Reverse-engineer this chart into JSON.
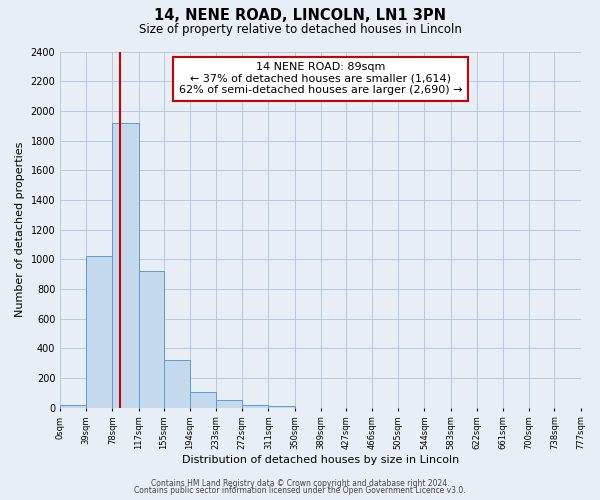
{
  "title": "14, NENE ROAD, LINCOLN, LN1 3PN",
  "subtitle": "Size of property relative to detached houses in Lincoln",
  "xlabel": "Distribution of detached houses by size in Lincoln",
  "ylabel": "Number of detached properties",
  "bin_edges": [
    0,
    39,
    78,
    117,
    155,
    194,
    233,
    272,
    311,
    350,
    389,
    427,
    466,
    505,
    544,
    583,
    622,
    661,
    700,
    738,
    777
  ],
  "bin_labels": [
    "0sqm",
    "39sqm",
    "78sqm",
    "117sqm",
    "155sqm",
    "194sqm",
    "233sqm",
    "272sqm",
    "311sqm",
    "350sqm",
    "389sqm",
    "427sqm",
    "466sqm",
    "505sqm",
    "544sqm",
    "583sqm",
    "622sqm",
    "661sqm",
    "700sqm",
    "738sqm",
    "777sqm"
  ],
  "bar_heights": [
    20,
    1020,
    1920,
    920,
    320,
    105,
    50,
    22,
    10,
    0,
    0,
    0,
    0,
    0,
    0,
    0,
    0,
    0,
    0,
    0
  ],
  "bar_color": "#c5d9ed",
  "bar_edge_color": "#5b9bd5",
  "vline_x": 89,
  "vline_color": "#cc0000",
  "annotation_line1": "14 NENE ROAD: 89sqm",
  "annotation_line2": "← 37% of detached houses are smaller (1,614)",
  "annotation_line3": "62% of semi-detached houses are larger (2,690) →",
  "annotation_box_facecolor": "#ffffff",
  "annotation_box_edgecolor": "#cc0000",
  "ylim": [
    0,
    2400
  ],
  "yticks": [
    0,
    200,
    400,
    600,
    800,
    1000,
    1200,
    1400,
    1600,
    1800,
    2000,
    2200,
    2400
  ],
  "background_color": "#e8eef5",
  "plot_bg_color": "#e8eef5",
  "footer_line1": "Contains HM Land Registry data © Crown copyright and database right 2024.",
  "footer_line2": "Contains public sector information licensed under the Open Government Licence v3.0."
}
